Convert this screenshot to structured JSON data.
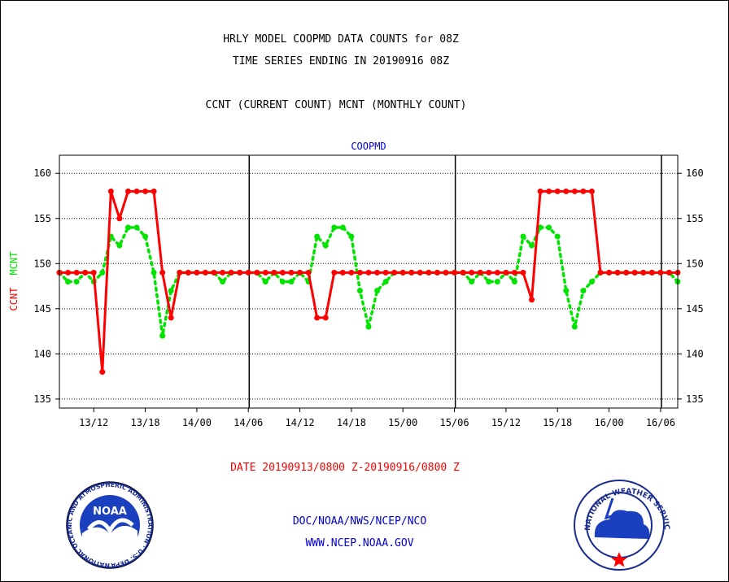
{
  "header": {
    "title_line1": "HRLY MODEL COOPMD DATA COUNTS for 08Z",
    "title_line2": "TIME SERIES ENDING IN 20190916 08Z",
    "subtitle": "CCNT (CURRENT COUNT) MCNT (MONTHLY COUNT)"
  },
  "footer": {
    "date_range": "DATE 20190913/0800 Z-20190916/0800 Z",
    "org_line": "DOC/NOAA/NWS/NCEP/NCO",
    "url": "WWW.NCEP.NOAA.GOV"
  },
  "logos": {
    "noaa_text": "NOAA",
    "noaa_ring": "NATIONAL OCEANIC AND ATMOSPHERIC ADMINISTRATION · U.S. DEPARTMENT OF COMMERCE ·",
    "nws_ring": "NATIONAL WEATHER SERVICE"
  },
  "colors": {
    "ccnt": "#ff0000",
    "mcnt": "#00e400",
    "text_blue": "#0000cc",
    "text_red": "#ff0000"
  },
  "chart_data": {
    "type": "line",
    "title": "COOPMD",
    "ylabel_parts": [
      "CCNT",
      "MCNT"
    ],
    "ylim": [
      134,
      162
    ],
    "yticks": [
      135,
      140,
      145,
      150,
      155,
      160
    ],
    "xlim": [
      0,
      72
    ],
    "x_unit": "hours since 20190913/0800 Z",
    "xticks": [
      {
        "x": 4,
        "label": "13/12"
      },
      {
        "x": 10,
        "label": "13/18"
      },
      {
        "x": 16,
        "label": "14/00"
      },
      {
        "x": 22,
        "label": "14/06"
      },
      {
        "x": 28,
        "label": "14/12"
      },
      {
        "x": 34,
        "label": "14/18"
      },
      {
        "x": 40,
        "label": "15/00"
      },
      {
        "x": 46,
        "label": "15/06"
      },
      {
        "x": 52,
        "label": "15/12"
      },
      {
        "x": 58,
        "label": "15/18"
      },
      {
        "x": 64,
        "label": "16/00"
      },
      {
        "x": 70,
        "label": "16/06"
      }
    ],
    "day_dividers": [
      22,
      46,
      70
    ],
    "series": [
      {
        "name": "CCNT",
        "style": "solid",
        "values": [
          149,
          149,
          149,
          149,
          149,
          138,
          158,
          155,
          158,
          158,
          158,
          158,
          149,
          144,
          149,
          149,
          149,
          149,
          149,
          149,
          149,
          149,
          149,
          149,
          149,
          149,
          149,
          149,
          149,
          149,
          144,
          144,
          149,
          149,
          149,
          149,
          149,
          149,
          149,
          149,
          149,
          149,
          149,
          149,
          149,
          149,
          149,
          149,
          149,
          149,
          149,
          149,
          149,
          149,
          149,
          146,
          158,
          158,
          158,
          158,
          158,
          158,
          158,
          149,
          149,
          149,
          149,
          149,
          149,
          149,
          149,
          149,
          149
        ]
      },
      {
        "name": "MCNT",
        "style": "dotted",
        "values": [
          149,
          148,
          148,
          149,
          148,
          149,
          153,
          152,
          154,
          154,
          153,
          149,
          142,
          147,
          149,
          149,
          149,
          149,
          149,
          148,
          149,
          149,
          149,
          149,
          148,
          149,
          148,
          148,
          149,
          148,
          153,
          152,
          154,
          154,
          153,
          147,
          143,
          147,
          148,
          149,
          149,
          149,
          149,
          149,
          149,
          149,
          149,
          149,
          148,
          149,
          148,
          148,
          149,
          148,
          153,
          152,
          154,
          154,
          153,
          147,
          143,
          147,
          148,
          149,
          149,
          149,
          149,
          149,
          149,
          149,
          149,
          149,
          148
        ]
      }
    ]
  }
}
